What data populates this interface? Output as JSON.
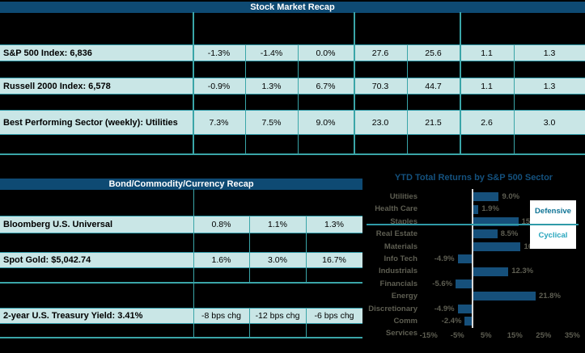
{
  "top_table": {
    "title": "Stock Market Recap",
    "rows": [
      {
        "label": "S&P 500 Index: 6,836",
        "cells": [
          "-1.3%",
          "-1.4%",
          "0.0%",
          "27.6",
          "25.6",
          "1.1",
          "1.3"
        ]
      },
      {
        "label": "Russell 2000 Index: 6,578",
        "cells": [
          "-0.9%",
          "1.3%",
          "6.7%",
          "70.3",
          "44.7",
          "1.1",
          "1.3"
        ]
      },
      {
        "label": "Best Performing Sector (weekly): Utilities",
        "cells": [
          "7.3%",
          "7.5%",
          "9.0%",
          "23.0",
          "21.5",
          "2.6",
          "3.0"
        ]
      }
    ]
  },
  "bottom_table": {
    "title": "Bond/Commodity/Currency Recap",
    "rows": [
      {
        "label": "Bloomberg U.S. Universal",
        "cells": [
          "0.8%",
          "1.1%",
          "1.3%"
        ]
      },
      {
        "label": "Spot Gold: $5,042.74",
        "cells": [
          "1.6%",
          "3.0%",
          "16.7%"
        ]
      },
      {
        "label": "2-year U.S. Treasury Yield: 3.41%",
        "cells": [
          "-8 bps chg",
          "-12 bps chg",
          "-6 bps chg"
        ]
      }
    ]
  },
  "chart_data": {
    "type": "bar",
    "orientation": "horizontal",
    "title": "YTD Total Returns by S&P 500 Sector",
    "categories": [
      "Utilities",
      "Health Care",
      "Staples",
      "Real Estate",
      "Materials",
      "Info Tech",
      "Industrials",
      "Financials",
      "Energy",
      "Discretionary",
      "Comm Services"
    ],
    "values": [
      9.0,
      1.9,
      15.8,
      8.5,
      16.6,
      -4.9,
      12.3,
      -5.6,
      21.8,
      -4.9,
      -2.4
    ],
    "value_labels": [
      "9.0%",
      "1.9%",
      "15.8%",
      "8.5%",
      "16.6%",
      "-4.9%",
      "12.3%",
      "-5.6%",
      "21.8%",
      "-4.9%",
      "-2.4%"
    ],
    "x_ticks": [
      "-15%",
      "-5%",
      "5%",
      "15%",
      "25%",
      "35%"
    ],
    "x_tick_values": [
      -15,
      -5,
      5,
      15,
      25,
      35
    ],
    "xlim": [
      -20,
      40
    ],
    "grid": false,
    "legend_position": "right",
    "legend": [
      {
        "label": "Defensive"
      },
      {
        "label": "Cyclical"
      }
    ],
    "group_divider_between": [
      "Staples",
      "Real Estate"
    ],
    "colors": {
      "bar": "#16507b",
      "label_text": "#5e5e52",
      "title_text": "#14517e",
      "defensive_text": "#0e7395",
      "cyclical_text": "#27a5bd",
      "divider_teal": "#3aa5a8",
      "zero_axis": "#d9d9d9"
    }
  },
  "palette": {
    "background": "#000000",
    "header_navy": "#0e4a73",
    "row_fill": "#c9e6e6",
    "grid_teal": "#3aa5a8",
    "text_black": "#000000",
    "title_text_white": "#ffffff"
  }
}
